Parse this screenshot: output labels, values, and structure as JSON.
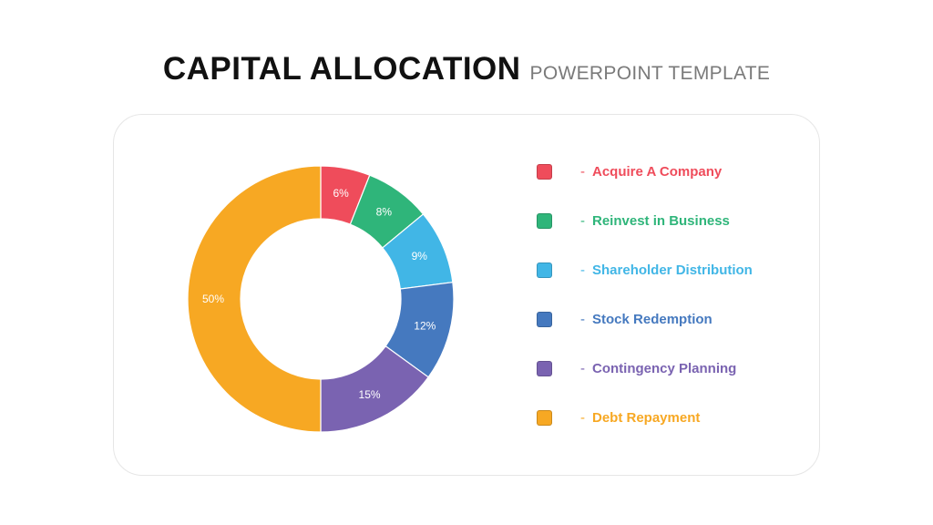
{
  "title": {
    "main": "CAPITAL ALLOCATION",
    "sub": "POWERPOINT TEMPLATE"
  },
  "chart_data": {
    "type": "pie",
    "donut": true,
    "categories": [
      "Acquire A Company",
      "Reinvest in Business",
      "Shareholder Distribution",
      "Stock Redemption",
      "Contingency Planning",
      "Debt Repayment"
    ],
    "values": [
      6,
      8,
      9,
      12,
      15,
      50
    ],
    "data_labels": [
      "6%",
      "8%",
      "9%",
      "12%",
      "15%",
      "50%"
    ],
    "colors": [
      "#ef4c5b",
      "#2fb57a",
      "#41b6e6",
      "#4579bf",
      "#7a63b1",
      "#f7a823"
    ],
    "legend_placement": "right"
  },
  "legend": {
    "dash": "-",
    "items": [
      {
        "label": "Acquire A Company",
        "color": "#ef4c5b"
      },
      {
        "label": "Reinvest in Business",
        "color": "#2fb57a"
      },
      {
        "label": "Shareholder Distribution",
        "color": "#41b6e6"
      },
      {
        "label": "Stock Redemption",
        "color": "#4579bf"
      },
      {
        "label": "Contingency Planning",
        "color": "#7a63b1"
      },
      {
        "label": "Debt Repayment",
        "color": "#f7a823"
      }
    ]
  }
}
